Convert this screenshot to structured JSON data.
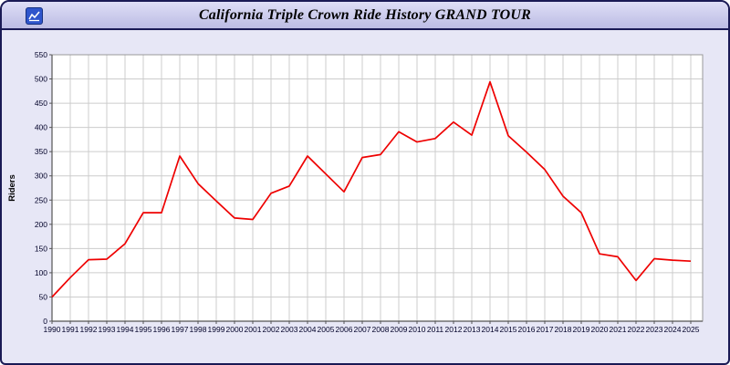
{
  "window": {
    "title": "California Triple Crown Ride History GRAND TOUR",
    "icon": "chart-window-icon"
  },
  "chart_data": {
    "type": "line",
    "title": "California Triple Crown Ride History GRAND TOUR",
    "series_name": "Riders",
    "xlabel": "",
    "ylabel": "Riders",
    "ylim": [
      0,
      550
    ],
    "ytick_step": 50,
    "grid": true,
    "legend_position": "none",
    "line_color": "#ee0000",
    "x": [
      "1990",
      "1991",
      "1992",
      "1993",
      "1994",
      "1995",
      "1996",
      "1997",
      "1998",
      "1999",
      "2000",
      "2001",
      "2002",
      "2003",
      "2004",
      "2005",
      "2006",
      "2007",
      "2008",
      "2009",
      "2010",
      "2011",
      "2012",
      "2013",
      "2014",
      "2015",
      "2016",
      "2017",
      "2018",
      "2019",
      "2020",
      "2021",
      "2022",
      "2023",
      "2024",
      "2025"
    ],
    "values": [
      50,
      90,
      127,
      128,
      160,
      224,
      224,
      341,
      284,
      248,
      213,
      210,
      264,
      279,
      341,
      304,
      267,
      338,
      344,
      391,
      370,
      377,
      411,
      384,
      494,
      383,
      349,
      313,
      258,
      224,
      139,
      133,
      84,
      129,
      126,
      124
    ]
  },
  "colors": {
    "titlebar_bg": "#c9c9ec",
    "panel_bg": "#e7e7f6",
    "window_border": "#1a1a55",
    "plot_bg": "#ffffff",
    "grid": "#cccccc",
    "axis": "#555555",
    "tick_text": "#000028"
  }
}
